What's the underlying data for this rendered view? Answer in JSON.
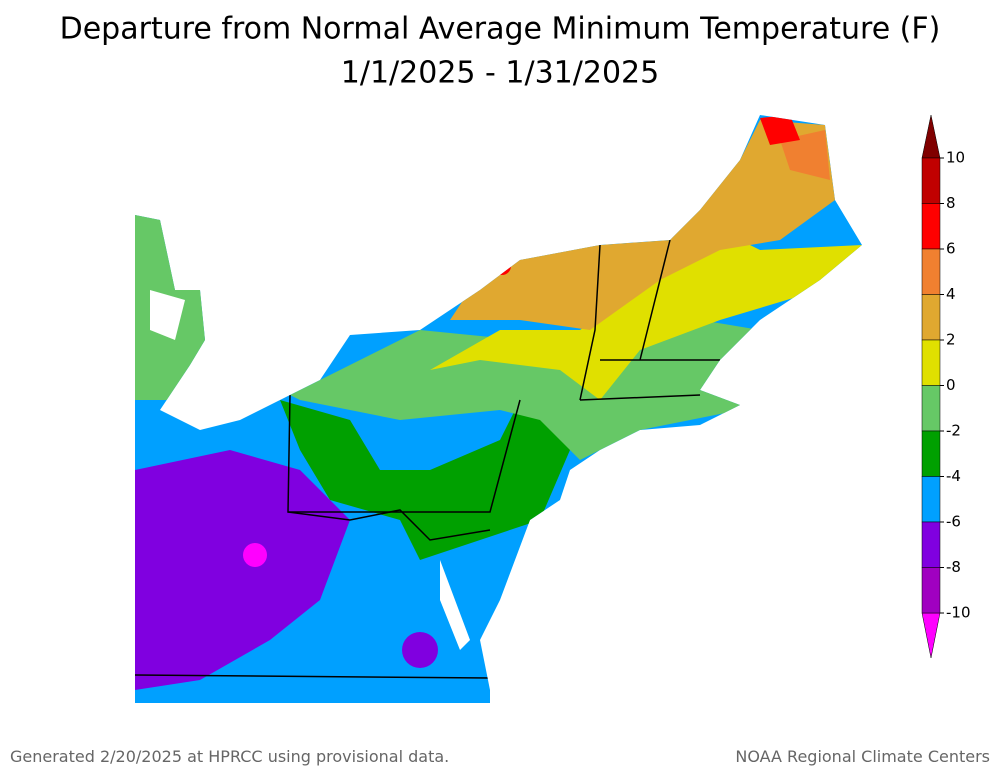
{
  "title": "Departure from Normal Average Minimum Temperature (F)",
  "subtitle": "1/1/2025 - 1/31/2025",
  "legend": {
    "ticks": [
      10,
      8,
      6,
      4,
      2,
      0,
      -2,
      -4,
      -6,
      -8,
      -10
    ],
    "colors": [
      "#800000",
      "#c00000",
      "#ff0000",
      "#f08030",
      "#e0a830",
      "#e0e000",
      "#66c866",
      "#00a000",
      "#00a0ff",
      "#8000e0",
      "#a000c0",
      "#ff00ff"
    ]
  },
  "footer": {
    "left": "Generated 2/20/2025 at HPRCC using provisional data.",
    "right": "NOAA Regional Climate Centers"
  }
}
